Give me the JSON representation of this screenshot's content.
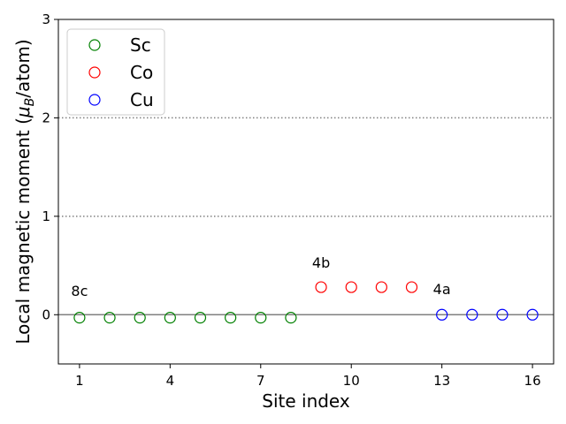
{
  "chart_data": {
    "type": "scatter",
    "title": "",
    "xlabel": "Site index",
    "ylabel_prefix": "Local magnetic moment (",
    "ylabel_mu": "μ",
    "ylabel_sub": "B",
    "ylabel_suffix": "/atom)",
    "xlim": [
      0.3,
      16.7
    ],
    "ylim": [
      -0.5,
      3.0
    ],
    "xticks": [
      1,
      4,
      7,
      10,
      13,
      16
    ],
    "yticks": [
      0,
      1,
      2,
      3
    ],
    "marker": "open-circle",
    "hlines": [
      {
        "y": 0,
        "style": "solid",
        "color": "#808080"
      },
      {
        "y": 1,
        "style": "dotted",
        "color": "#808080"
      },
      {
        "y": 2,
        "style": "dotted",
        "color": "#808080"
      }
    ],
    "legend_position": "top-left",
    "series": [
      {
        "name": "Sc",
        "color": "#008000",
        "x": [
          1,
          2,
          3,
          4,
          5,
          6,
          7,
          8
        ],
        "y": [
          -0.03,
          -0.03,
          -0.03,
          -0.03,
          -0.03,
          -0.03,
          -0.03,
          -0.03
        ]
      },
      {
        "name": "Co",
        "color": "#ff0000",
        "x": [
          9,
          10,
          11,
          12
        ],
        "y": [
          0.28,
          0.28,
          0.28,
          0.28
        ]
      },
      {
        "name": "Cu",
        "color": "#0000ff",
        "x": [
          13,
          14,
          15,
          16
        ],
        "y": [
          0.0,
          0.0,
          0.0,
          0.0
        ]
      }
    ],
    "annotations": [
      {
        "text": "8c",
        "x": 1.0,
        "y": 0.19
      },
      {
        "text": "4b",
        "x": 9.0,
        "y": 0.48
      },
      {
        "text": "4a",
        "x": 13.0,
        "y": 0.21
      }
    ]
  }
}
